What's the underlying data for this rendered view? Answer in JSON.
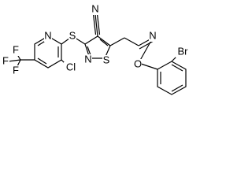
{
  "atoms": [
    {
      "label": "N"
    },
    {
      "label": "S"
    },
    {
      "label": "N"
    },
    {
      "label": "F"
    },
    {
      "label": "F"
    },
    {
      "label": "F"
    },
    {
      "label": "Cl"
    },
    {
      "label": "N"
    },
    {
      "label": "S"
    },
    {
      "label": "N"
    },
    {
      "label": "O"
    },
    {
      "label": "Br"
    }
  ]
}
